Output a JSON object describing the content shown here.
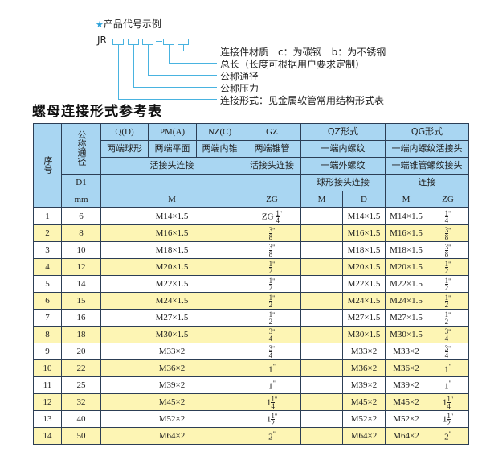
{
  "intro": {
    "star_icon": "star-icon",
    "title": "产品代号示例",
    "code_prefix": "JR",
    "labels": [
      "连接件材质　c：为碳钢　b：为不锈钢",
      "总长（长度可根据用户要求定制）",
      "公称通径",
      "公称压力",
      "连接形式：见金属软管常用结构形式表"
    ]
  },
  "table_title": "螺母连接形式参考表",
  "header": {
    "seq": "序号",
    "nominal": "公称通径",
    "d1": "D1",
    "mm": "mm",
    "qd": "Q(D)",
    "pm": "PM(A)",
    "nz": "NZ(C)",
    "gz": "GZ",
    "qz": "QZ形式",
    "qg": "QG形式",
    "qd_desc": "两端球形",
    "pm_desc": "两端平面",
    "nz_desc": "两端内锥",
    "gz_desc": "两端锥管",
    "qz_desc1": "一端内螺纹",
    "qg_desc1": "一端内螺纹活接头",
    "union": "活接头连接",
    "gz_union": "活接头连接",
    "qz_desc2": "一端外螺纹",
    "qg_desc2": "一端锥管螺纹接头",
    "qz_desc3": "球形接头连接",
    "qg_desc3": "连接",
    "m": "M",
    "zg": "ZG",
    "qz_m": "M",
    "qz_d": "D",
    "qg_m": "M",
    "qg_zg": "ZG"
  },
  "rows": [
    {
      "no": "1",
      "dn": "6",
      "m": "M14×1.5",
      "zg_pre": "ZG ",
      "zg_whole": "",
      "zg_n": "1",
      "zg_d": "4",
      "qz_m": "",
      "qz_d": "M14×1.5",
      "qg_m": "M14×1.5"
    },
    {
      "no": "2",
      "dn": "8",
      "m": "M16×1.5",
      "zg_pre": "",
      "zg_whole": "",
      "zg_n": "3",
      "zg_d": "8",
      "qz_m": "",
      "qz_d": "M16×1.5",
      "qg_m": "M16×1.5"
    },
    {
      "no": "3",
      "dn": "10",
      "m": "M18×1.5",
      "zg_pre": "",
      "zg_whole": "",
      "zg_n": "3",
      "zg_d": "8",
      "qz_m": "",
      "qz_d": "M18×1.5",
      "qg_m": "M18×1.5"
    },
    {
      "no": "4",
      "dn": "12",
      "m": "M20×1.5",
      "zg_pre": "",
      "zg_whole": "",
      "zg_n": "1",
      "zg_d": "2",
      "qz_m": "",
      "qz_d": "M20×1.5",
      "qg_m": "M20×1.5"
    },
    {
      "no": "5",
      "dn": "14",
      "m": "M22×1.5",
      "zg_pre": "",
      "zg_whole": "",
      "zg_n": "1",
      "zg_d": "2",
      "qz_m": "",
      "qz_d": "M22×1.5",
      "qg_m": "M22×1.5"
    },
    {
      "no": "6",
      "dn": "15",
      "m": "M24×1.5",
      "zg_pre": "",
      "zg_whole": "",
      "zg_n": "1",
      "zg_d": "2",
      "qz_m": "",
      "qz_d": "M24×1.5",
      "qg_m": "M24×1.5"
    },
    {
      "no": "7",
      "dn": "16",
      "m": "M27×1.5",
      "zg_pre": "",
      "zg_whole": "",
      "zg_n": "1",
      "zg_d": "2",
      "qz_m": "",
      "qz_d": "M27×1.5",
      "qg_m": "M27×1.5"
    },
    {
      "no": "8",
      "dn": "18",
      "m": "M30×1.5",
      "zg_pre": "",
      "zg_whole": "",
      "zg_n": "3",
      "zg_d": "4",
      "qz_m": "",
      "qz_d": "M30×1.5",
      "qg_m": "M30×1.5"
    },
    {
      "no": "9",
      "dn": "20",
      "m": "M33×2",
      "zg_pre": "",
      "zg_whole": "",
      "zg_n": "3",
      "zg_d": "4",
      "qz_m": "",
      "qz_d": "M33×2",
      "qg_m": "M33×2"
    },
    {
      "no": "10",
      "dn": "22",
      "m": "M36×2",
      "zg_pre": "",
      "zg_whole": "1",
      "zg_n": "",
      "zg_d": "",
      "qz_m": "",
      "qz_d": "M36×2",
      "qg_m": "M36×2"
    },
    {
      "no": "11",
      "dn": "25",
      "m": "M39×2",
      "zg_pre": "",
      "zg_whole": "1",
      "zg_n": "",
      "zg_d": "",
      "qz_m": "",
      "qz_d": "M39×2",
      "qg_m": "M39×2"
    },
    {
      "no": "12",
      "dn": "32",
      "m": "M45×2",
      "zg_pre": "",
      "zg_whole": "1",
      "zg_n": "1",
      "zg_d": "4",
      "qz_m": "",
      "qz_d": "M45×2",
      "qg_m": "M45×2"
    },
    {
      "no": "13",
      "dn": "40",
      "m": "M52×2",
      "zg_pre": "",
      "zg_whole": "1",
      "zg_n": "1",
      "zg_d": "2",
      "qz_m": "",
      "qz_d": "M52×2",
      "qg_m": "M52×2"
    },
    {
      "no": "14",
      "dn": "50",
      "m": "M64×2",
      "zg_pre": "",
      "zg_whole": "2",
      "zg_n": "",
      "zg_d": "",
      "qz_m": "",
      "qz_d": "M64×2",
      "qg_m": "M64×2"
    }
  ],
  "inch_mark": "\"",
  "colors": {
    "header": "#a9d6f2",
    "stripe": "#fdf5b4",
    "accent": "#49b3e0"
  }
}
